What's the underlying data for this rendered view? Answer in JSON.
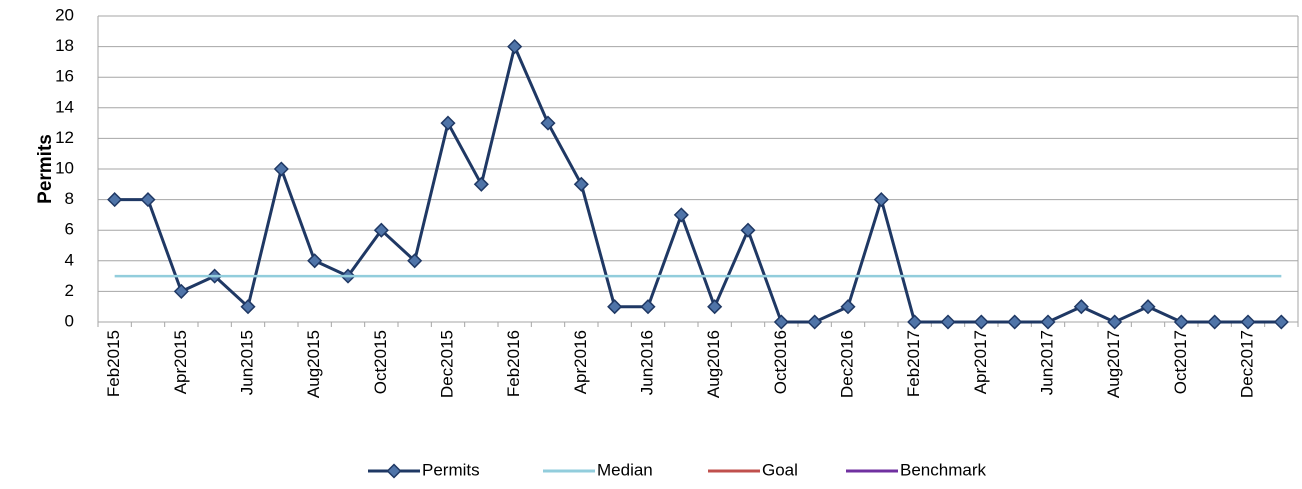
{
  "chart_data": {
    "type": "line",
    "y_label": "Permits",
    "categories": [
      "Feb2015",
      null,
      "Apr2015",
      null,
      "Jun2015",
      null,
      "Aug2015",
      null,
      "Oct2015",
      null,
      "Dec2015",
      null,
      "Feb2016",
      null,
      "Apr2016",
      null,
      "Jun2016",
      null,
      "Aug2016",
      null,
      "Oct2016",
      null,
      "Dec2016",
      null,
      "Feb2017",
      null,
      "Apr2017",
      null,
      "Jun2017",
      null,
      "Aug2017",
      null,
      "Oct2017",
      null,
      "Dec2017",
      null
    ],
    "series": [
      {
        "name": "Permits",
        "color": "#1f3864",
        "marker": "diamond",
        "values": [
          8,
          8,
          2,
          3,
          1,
          10,
          4,
          3,
          6,
          4,
          13,
          9,
          18,
          13,
          9,
          1,
          1,
          7,
          1,
          6,
          0,
          0,
          1,
          8,
          0,
          0,
          0,
          0,
          0,
          1,
          0,
          1,
          0,
          0,
          0,
          0
        ]
      },
      {
        "name": "Median",
        "color": "#92cddc",
        "values": [
          3,
          3,
          3,
          3,
          3,
          3,
          3,
          3,
          3,
          3,
          3,
          3,
          3,
          3,
          3,
          3,
          3,
          3,
          3,
          3,
          3,
          3,
          3,
          3,
          3,
          3,
          3,
          3,
          3,
          3,
          3,
          3,
          3,
          3,
          3,
          3
        ]
      },
      {
        "name": "Goal",
        "color": "#c0504d",
        "values": [
          null,
          null,
          null,
          null,
          null,
          null,
          null,
          null,
          null,
          null,
          null,
          null,
          null,
          null,
          null,
          null,
          null,
          null,
          null,
          null,
          null,
          null,
          null,
          null,
          null,
          null,
          null,
          null,
          null,
          null,
          null,
          null,
          null,
          null,
          null,
          null
        ]
      },
      {
        "name": "Benchmark",
        "color": "#7030a0",
        "values": [
          null,
          null,
          null,
          null,
          null,
          null,
          null,
          null,
          null,
          null,
          null,
          null,
          null,
          null,
          null,
          null,
          null,
          null,
          null,
          null,
          null,
          null,
          null,
          null,
          null,
          null,
          null,
          null,
          null,
          null,
          null,
          null,
          null,
          null,
          null,
          null
        ]
      }
    ],
    "ylim": [
      0,
      20
    ],
    "yticks": [
      0,
      2,
      4,
      6,
      8,
      10,
      12,
      14,
      16,
      18,
      20
    ],
    "grid": true,
    "legend": "bottom"
  }
}
